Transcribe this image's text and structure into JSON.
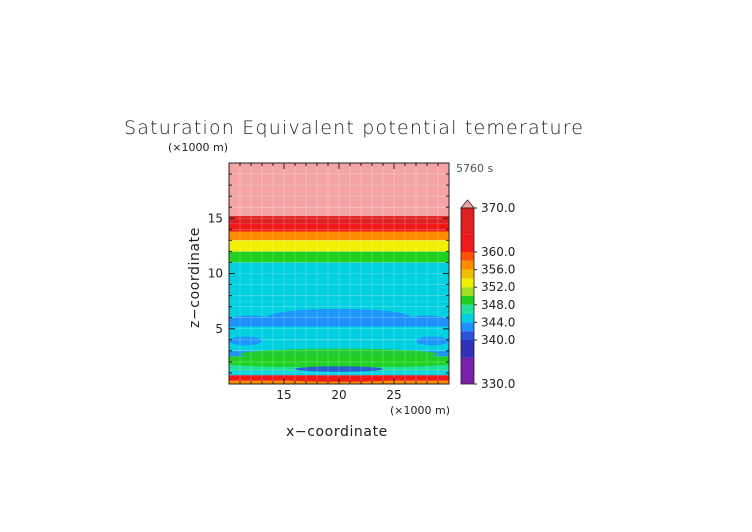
{
  "chart_data": {
    "type": "heatmap",
    "title": "Saturation Equivalent potential temerature",
    "time_label": "5760 s",
    "xlabel": "x−coordinate",
    "ylabel": "z−coordinate",
    "x_unit": "(×1000 m)",
    "y_unit": "(×1000 m)",
    "xlim": [
      10,
      30
    ],
    "ylim": [
      0,
      20
    ],
    "x_ticks": [
      15,
      20,
      25
    ],
    "y_ticks": [
      5,
      10,
      15
    ],
    "colorbar": {
      "min": 330,
      "max": 370,
      "labels": [
        "370.0",
        "360.0",
        "356.0",
        "352.0",
        "348.0",
        "344.0",
        "340.0",
        "330.0"
      ],
      "label_values": [
        370,
        360,
        356,
        352,
        348,
        344,
        340,
        330
      ],
      "colors": [
        {
          "value": 330,
          "color": "#7a1fa8"
        },
        {
          "value": 336,
          "color": "#3030b8"
        },
        {
          "value": 340,
          "color": "#2a52d8"
        },
        {
          "value": 342,
          "color": "#1e90ff"
        },
        {
          "value": 344,
          "color": "#00d0e0"
        },
        {
          "value": 346,
          "color": "#20e0a0"
        },
        {
          "value": 348,
          "color": "#20d020"
        },
        {
          "value": 350,
          "color": "#a0e020"
        },
        {
          "value": 352,
          "color": "#f0f000"
        },
        {
          "value": 354,
          "color": "#f0c000"
        },
        {
          "value": 356,
          "color": "#ff8c00"
        },
        {
          "value": 358,
          "color": "#ff5000"
        },
        {
          "value": 360,
          "color": "#f01818"
        },
        {
          "value": 364,
          "color": "#e02020"
        },
        {
          "value": 370,
          "color": "#f4a4a4"
        }
      ]
    },
    "z_profile": [
      {
        "z": 0.3,
        "value": 356
      },
      {
        "z": 0.8,
        "value": 360
      },
      {
        "z": 1.2,
        "value": 344
      },
      {
        "z": 1.8,
        "value": 346
      },
      {
        "z": 2.5,
        "value": 348
      },
      {
        "z": 3.0,
        "value": 343
      },
      {
        "z": 4.0,
        "value": 344
      },
      {
        "z": 5.2,
        "value": 344
      },
      {
        "z": 6.0,
        "value": 342
      },
      {
        "z": 7.5,
        "value": 344
      },
      {
        "z": 9.5,
        "value": 344
      },
      {
        "z": 11.0,
        "value": 345
      },
      {
        "z": 12.0,
        "value": 348
      },
      {
        "z": 13.0,
        "value": 352
      },
      {
        "z": 13.8,
        "value": 356
      },
      {
        "z": 14.5,
        "value": 360
      },
      {
        "z": 15.2,
        "value": 364
      },
      {
        "z": 16.0,
        "value": 370
      },
      {
        "z": 20.0,
        "value": 370
      }
    ],
    "features": [
      {
        "name": "blue-band-upper",
        "x_range": [
          13.5,
          26.5
        ],
        "z_range": [
          5.3,
          6.8
        ],
        "value": 342
      },
      {
        "name": "blue-lobe-left",
        "x_range": [
          10,
          14
        ],
        "z_range": [
          5.2,
          6.2
        ],
        "value": 342
      },
      {
        "name": "blue-lobe-right",
        "x_range": [
          26,
          30
        ],
        "z_range": [
          5.2,
          6.2
        ],
        "value": 342
      },
      {
        "name": "blue-band-lower-left",
        "x_range": [
          10,
          13
        ],
        "z_range": [
          3.5,
          4.3
        ],
        "value": 342
      },
      {
        "name": "blue-band-lower-right",
        "x_range": [
          27,
          30
        ],
        "z_range": [
          3.5,
          4.3
        ],
        "value": 342
      },
      {
        "name": "green-arc",
        "x_range": [
          11,
          29
        ],
        "z_range": [
          2.2,
          3.2
        ],
        "value": 348
      },
      {
        "name": "green-band",
        "x_range": [
          10,
          30
        ],
        "z_range": [
          1.5,
          2.1
        ],
        "value": 348
      },
      {
        "name": "blue-core",
        "x_range": [
          16,
          24
        ],
        "z_range": [
          1.1,
          1.6
        ],
        "value": 340
      },
      {
        "name": "red-surface-core",
        "x_range": [
          15,
          25
        ],
        "z_range": [
          0.2,
          0.6
        ],
        "value": 362
      }
    ]
  }
}
